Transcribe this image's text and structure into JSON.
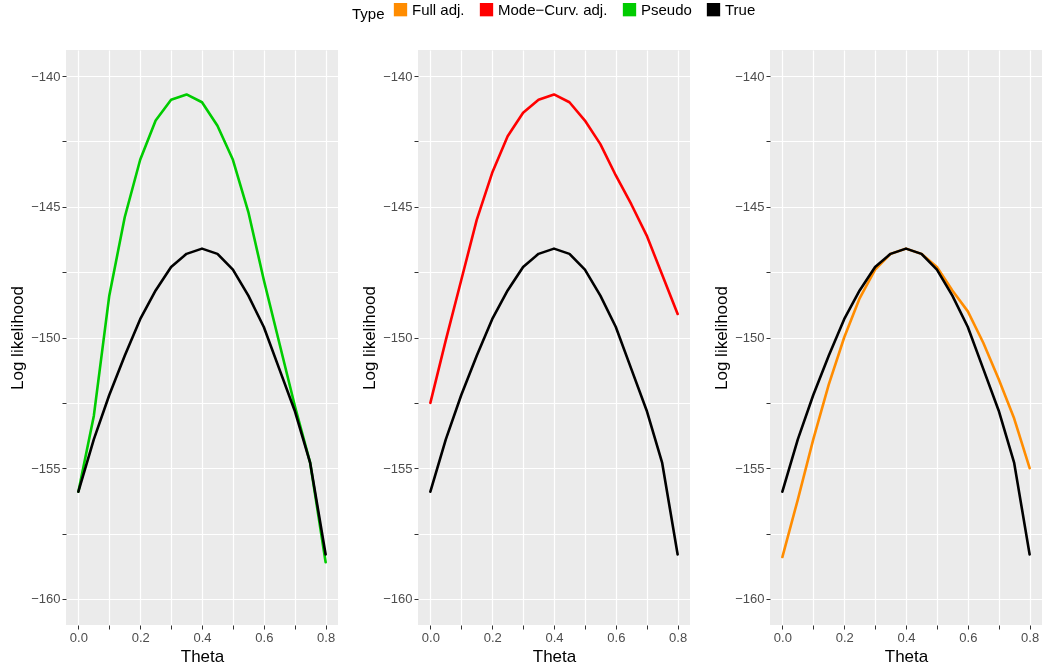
{
  "chart_data": [
    {
      "type": "line",
      "xlabel": "Theta",
      "ylabel": "Log likelihood",
      "legend": "top",
      "legend_title": "Type",
      "grid": true,
      "line_style": "solid",
      "x": [
        0,
        0.05,
        0.1,
        0.15,
        0.2,
        0.25,
        0.3,
        0.35,
        0.4,
        0.45,
        0.5,
        0.55,
        0.6,
        0.65,
        0.7,
        0.75,
        0.8
      ],
      "xlim": [
        -0.04,
        0.84
      ],
      "ylim": [
        -161.0,
        -139.0
      ],
      "xticks": [
        {
          "value": 0,
          "label": "0.0"
        },
        {
          "value": 0.1,
          "label": null
        },
        0.2,
        {
          "value": 0.3,
          "label": null
        },
        0.4,
        {
          "value": 0.5,
          "label": null
        },
        0.6,
        {
          "value": 0.7,
          "label": null
        },
        0.8
      ],
      "yticks": [
        -160,
        {
          "value": -157.5,
          "label": null
        },
        -155,
        {
          "value": -152.5,
          "label": null
        },
        -150,
        {
          "value": -147.5,
          "label": null
        },
        -145,
        {
          "value": -142.5,
          "label": null
        },
        -140
      ],
      "series": [
        {
          "name": "Pseudo",
          "color": "#00cc00",
          "values": [
            -155.9,
            -153.0,
            -148.4,
            -145.4,
            -143.2,
            -141.7,
            -140.9,
            -140.7,
            -141.0,
            -141.9,
            -143.2,
            -145.2,
            -147.8,
            -150.2,
            -152.6,
            -154.8,
            -158.6
          ]
        },
        {
          "name": "True",
          "color": "#000000",
          "values": [
            -155.9,
            -153.9,
            -152.2,
            -150.7,
            -149.3,
            -148.2,
            -147.3,
            -146.8,
            -146.6,
            -146.8,
            -147.4,
            -148.4,
            -149.6,
            -151.2,
            -152.8,
            -154.8,
            -158.3
          ]
        }
      ]
    },
    {
      "type": "line",
      "xlabel": "Theta",
      "ylabel": "Log likelihood",
      "grid": true,
      "line_style": "solid",
      "x": [
        0,
        0.05,
        0.1,
        0.15,
        0.2,
        0.25,
        0.3,
        0.35,
        0.4,
        0.45,
        0.5,
        0.55,
        0.6,
        0.65,
        0.7,
        0.75,
        0.8
      ],
      "xlim": [
        -0.04,
        0.84
      ],
      "ylim": [
        -161.0,
        -139.0
      ],
      "xticks": [
        {
          "value": 0,
          "label": "0.0"
        },
        {
          "value": 0.1,
          "label": null
        },
        0.2,
        {
          "value": 0.3,
          "label": null
        },
        0.4,
        {
          "value": 0.5,
          "label": null
        },
        0.6,
        {
          "value": 0.7,
          "label": null
        },
        0.8
      ],
      "yticks": [
        -160,
        {
          "value": -157.5,
          "label": null
        },
        -155,
        {
          "value": -152.5,
          "label": null
        },
        -150,
        {
          "value": -147.5,
          "label": null
        },
        -145,
        {
          "value": -142.5,
          "label": null
        },
        -140
      ],
      "series": [
        {
          "name": "Mode−Curv. adj.",
          "color": "#ff0000",
          "values": [
            -152.5,
            -150.1,
            -147.8,
            -145.5,
            -143.7,
            -142.3,
            -141.4,
            -140.9,
            -140.7,
            -141.0,
            -141.7,
            -142.6,
            -143.8,
            -144.9,
            -146.1,
            -147.6,
            -149.1
          ]
        },
        {
          "name": "True",
          "color": "#000000",
          "values": [
            -155.9,
            -153.9,
            -152.2,
            -150.7,
            -149.3,
            -148.2,
            -147.3,
            -146.8,
            -146.6,
            -146.8,
            -147.4,
            -148.4,
            -149.6,
            -151.2,
            -152.8,
            -154.8,
            -158.3
          ]
        }
      ]
    },
    {
      "type": "line",
      "xlabel": "Theta",
      "ylabel": "Log likelihood",
      "grid": true,
      "line_style": "solid",
      "x": [
        0,
        0.05,
        0.1,
        0.15,
        0.2,
        0.25,
        0.3,
        0.35,
        0.4,
        0.45,
        0.5,
        0.55,
        0.6,
        0.65,
        0.7,
        0.75,
        0.8
      ],
      "xlim": [
        -0.04,
        0.84
      ],
      "ylim": [
        -161.0,
        -139.0
      ],
      "xticks": [
        {
          "value": 0,
          "label": "0.0"
        },
        {
          "value": 0.1,
          "label": null
        },
        0.2,
        {
          "value": 0.3,
          "label": null
        },
        0.4,
        {
          "value": 0.5,
          "label": null
        },
        0.6,
        {
          "value": 0.7,
          "label": null
        },
        0.8
      ],
      "yticks": [
        -160,
        {
          "value": -157.5,
          "label": null
        },
        -155,
        {
          "value": -152.5,
          "label": null
        },
        -150,
        {
          "value": -147.5,
          "label": null
        },
        -145,
        {
          "value": -142.5,
          "label": null
        },
        -140
      ],
      "series": [
        {
          "name": "Full adj.",
          "color": "#ff8c00",
          "values": [
            -158.4,
            -156.2,
            -153.9,
            -151.8,
            -150.0,
            -148.5,
            -147.4,
            -146.8,
            -146.6,
            -146.8,
            -147.3,
            -148.2,
            -149.0,
            -150.2,
            -151.6,
            -153.1,
            -155.0
          ]
        },
        {
          "name": "True",
          "color": "#000000",
          "values": [
            -155.9,
            -153.9,
            -152.2,
            -150.7,
            -149.3,
            -148.2,
            -147.3,
            -146.8,
            -146.6,
            -146.8,
            -147.4,
            -148.4,
            -149.6,
            -151.2,
            -152.8,
            -154.8,
            -158.3
          ]
        }
      ]
    }
  ]
}
